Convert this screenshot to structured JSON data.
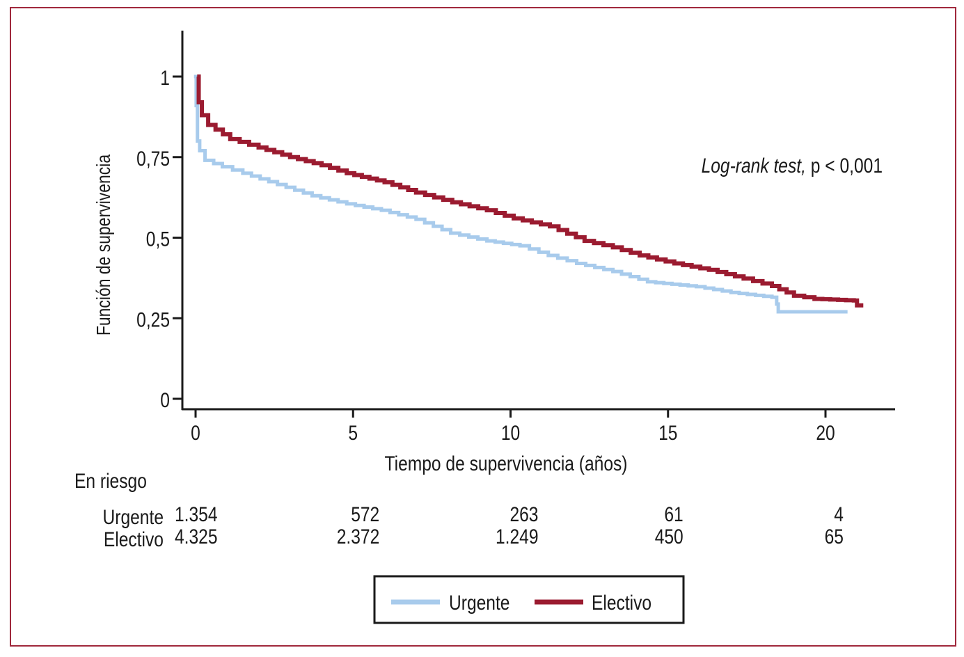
{
  "chart_data": {
    "type": "line",
    "subtype": "kaplan-meier step",
    "xlabel": "Tiempo de supervivencia (años)",
    "ylabel": "Función de supervivencia",
    "xlim": [
      0,
      22.5
    ],
    "ylim": [
      0,
      1.12
    ],
    "x_ticks": [
      0,
      5,
      10,
      15,
      20
    ],
    "x_tick_labels": [
      "0",
      "5",
      "10",
      "15",
      "20"
    ],
    "y_ticks": [
      0,
      0.25,
      0.5,
      0.75,
      1
    ],
    "y_tick_labels": [
      "0",
      "0,25",
      "0,5",
      "0,75",
      "1"
    ],
    "grid": false,
    "annotation_italic": "Log-rank test,",
    "annotation_rest": " p < 0,001",
    "legend_position": "bottom",
    "series": [
      {
        "name": "Urgente",
        "color": "#a8cbec",
        "x": [
          -0.05,
          0.02,
          0.06,
          0.13,
          0.3,
          0.85,
          1.5,
          2.6,
          3.7,
          4.8,
          5.9,
          7.0,
          8.1,
          9.25,
          10.3,
          11.2,
          12.1,
          13.25,
          14.35,
          15.9,
          17.0,
          18.3,
          18.45,
          18.5,
          20.7
        ],
        "y": [
          1.0,
          0.91,
          0.8,
          0.77,
          0.74,
          0.72,
          0.7,
          0.665,
          0.63,
          0.605,
          0.585,
          0.557,
          0.514,
          0.49,
          0.475,
          0.445,
          0.42,
          0.395,
          0.363,
          0.348,
          0.33,
          0.315,
          0.294,
          0.27,
          0.27
        ]
      },
      {
        "name": "Electivo",
        "color": "#9b1b30",
        "x": [
          0.05,
          0.1,
          0.2,
          0.4,
          1.1,
          2.0,
          3.0,
          4.0,
          4.8,
          6.0,
          7.0,
          8.15,
          9.25,
          10.1,
          11.25,
          12.35,
          13.25,
          14.1,
          15.2,
          16.3,
          17.4,
          18.3,
          19.0,
          19.65,
          20.9,
          21.0,
          21.2
        ],
        "y": [
          1.0,
          0.92,
          0.88,
          0.85,
          0.806,
          0.78,
          0.75,
          0.725,
          0.7,
          0.672,
          0.64,
          0.61,
          0.585,
          0.56,
          0.535,
          0.49,
          0.47,
          0.445,
          0.42,
          0.4,
          0.373,
          0.35,
          0.32,
          0.31,
          0.305,
          0.29,
          0.29
        ]
      }
    ],
    "risk_table": {
      "title": "En riesgo",
      "times": [
        0,
        5,
        10,
        15,
        20
      ],
      "rows": [
        {
          "label": "Urgente",
          "values": [
            "1.354",
            "572",
            "263",
            "61",
            "4"
          ]
        },
        {
          "label": "Electivo",
          "values": [
            "4.325",
            "2.372",
            "1.249",
            "450",
            "65"
          ]
        }
      ]
    }
  }
}
